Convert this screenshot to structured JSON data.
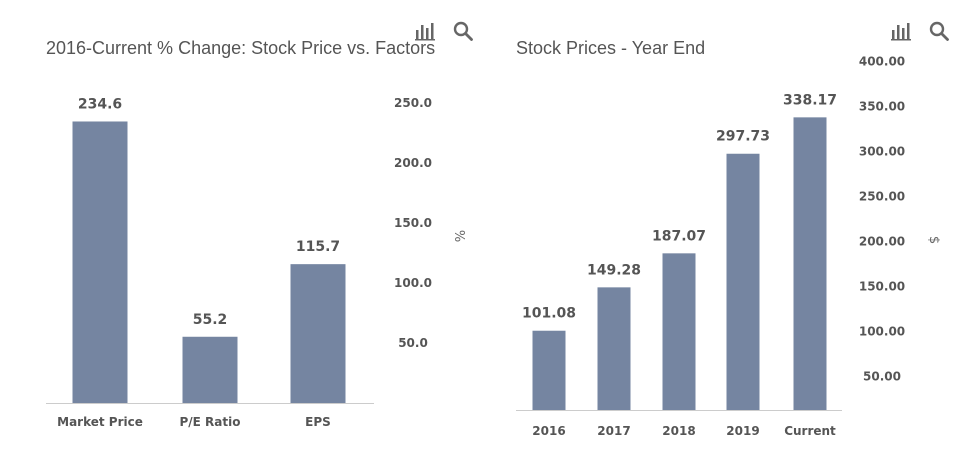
{
  "chart_data": [
    {
      "type": "bar",
      "title": "2016-Current % Change: Stock Price vs. Factors",
      "categories": [
        "Market Price",
        "P/E Ratio",
        "EPS"
      ],
      "values": [
        234.6,
        55.2,
        115.7
      ],
      "value_labels": [
        "234.6",
        "55.2",
        "115.7"
      ],
      "yticks": [
        "50.0",
        "100.0",
        "150.0",
        "200.0",
        "250.0"
      ],
      "ytick_values": [
        50,
        100,
        150,
        200,
        250
      ],
      "ylabel": "%",
      "ylim": [
        0,
        266
      ],
      "axis_position": "right",
      "color": "#7585a1"
    },
    {
      "type": "bar",
      "title": "Stock Prices - Year End",
      "categories": [
        "2016",
        "2017",
        "2018",
        "2019",
        "Current"
      ],
      "values": [
        101.08,
        149.28,
        187.07,
        297.73,
        338.17
      ],
      "value_labels": [
        "101.08",
        "149.28",
        "187.07",
        "297.73",
        "338.17"
      ],
      "yticks": [
        "50.00",
        "100.00",
        "150.00",
        "200.00",
        "250.00",
        "300.00",
        "350.00",
        "400.00"
      ],
      "ytick_values": [
        50,
        100,
        150,
        200,
        250,
        300,
        350,
        400
      ],
      "ylabel": "$",
      "ylim": [
        13,
        413
      ],
      "axis_position": "right",
      "color": "#7585a1"
    }
  ],
  "icons": {
    "chart_icon": "bar-chart-icon",
    "search_icon": "search-icon"
  }
}
